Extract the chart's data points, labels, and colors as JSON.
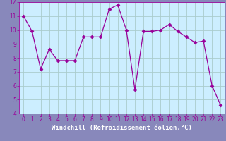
{
  "x": [
    0,
    1,
    2,
    3,
    4,
    5,
    6,
    7,
    8,
    9,
    10,
    11,
    12,
    13,
    14,
    15,
    16,
    17,
    18,
    19,
    20,
    21,
    22,
    23
  ],
  "y": [
    11.0,
    9.9,
    7.2,
    8.6,
    7.8,
    7.8,
    7.8,
    9.5,
    9.5,
    9.5,
    11.5,
    11.8,
    10.0,
    5.7,
    9.9,
    9.9,
    10.0,
    10.4,
    9.9,
    9.5,
    9.1,
    9.2,
    6.0,
    4.6
  ],
  "line_color": "#990099",
  "marker": "D",
  "markersize": 2.5,
  "bg_color": "#cceeff",
  "grid_color": "#aacccc",
  "xlabel": "Windchill (Refroidissement éolien,°C)",
  "xlabel_color": "#cc00cc",
  "xlabel_bg": "#8888bb",
  "fig_bg": "#8888bb",
  "ylim": [
    4,
    12
  ],
  "xlim": [
    -0.5,
    23.5
  ],
  "yticks": [
    4,
    5,
    6,
    7,
    8,
    9,
    10,
    11,
    12
  ],
  "xticks": [
    0,
    1,
    2,
    3,
    4,
    5,
    6,
    7,
    8,
    9,
    10,
    11,
    12,
    13,
    14,
    15,
    16,
    17,
    18,
    19,
    20,
    21,
    22,
    23
  ],
  "tick_color": "#990099",
  "tick_fontsize": 5.5,
  "xlabel_fontsize": 6.5
}
